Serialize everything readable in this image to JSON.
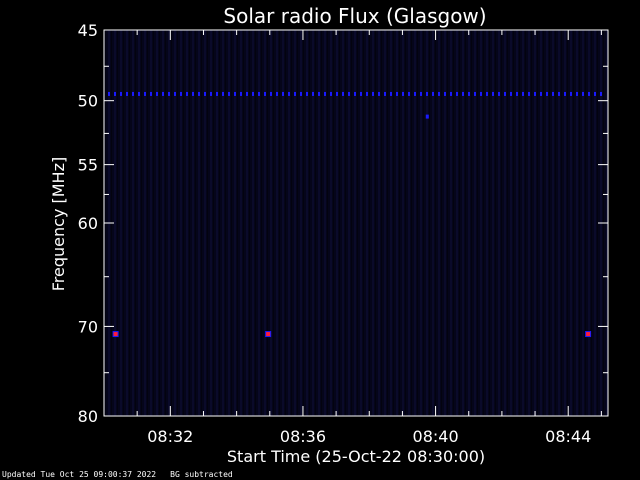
{
  "chart_data": {
    "type": "heatmap",
    "title": "Solar radio Flux (Glasgow)",
    "xlabel": "Start Time (25-Oct-22 08:30:00)",
    "ylabel": "Frequency [MHz]",
    "x_unit": "minutes after 08:30:00",
    "xlim": [
      0,
      15.2
    ],
    "ylim": [
      45,
      80
    ],
    "y_inverted": true,
    "x_ticks": [
      {
        "value": 2,
        "label": "08:32"
      },
      {
        "value": 6,
        "label": "08:36"
      },
      {
        "value": 10,
        "label": "08:40"
      },
      {
        "value": 14,
        "label": "08:44"
      }
    ],
    "y_ticks": [
      {
        "value": 45,
        "label": "45"
      },
      {
        "value": 50,
        "label": "50"
      },
      {
        "value": 55,
        "label": "55"
      },
      {
        "value": 60,
        "label": "60"
      },
      {
        "value": 70,
        "label": "70"
      },
      {
        "value": 80,
        "label": "80"
      }
    ],
    "y_minor_ticks": [
      47.5,
      52.5,
      57.5,
      65,
      75
    ],
    "background_color": "#05051a",
    "line_color": "#1a1aff",
    "hot_color": "#ff1a3a",
    "features": [
      {
        "kind": "band",
        "frequency": 49.5,
        "intensity": "low",
        "color": "#1a1aff"
      },
      {
        "kind": "spot",
        "time": 9.75,
        "frequency": 51.2,
        "intensity": "low",
        "color": "#1a1aff"
      },
      {
        "kind": "spot",
        "time": 0.35,
        "frequency": 70.8,
        "intensity": "high",
        "color": "#ff1a3a"
      },
      {
        "kind": "spot",
        "time": 4.95,
        "frequency": 70.8,
        "intensity": "high",
        "color": "#ff1a3a"
      },
      {
        "kind": "spot",
        "time": 14.6,
        "frequency": 70.8,
        "intensity": "high",
        "color": "#ff1a3a"
      }
    ]
  },
  "footer": {
    "updated": "Updated Tue Oct 25 09:00:37 2022",
    "note": "BG subtracted"
  }
}
